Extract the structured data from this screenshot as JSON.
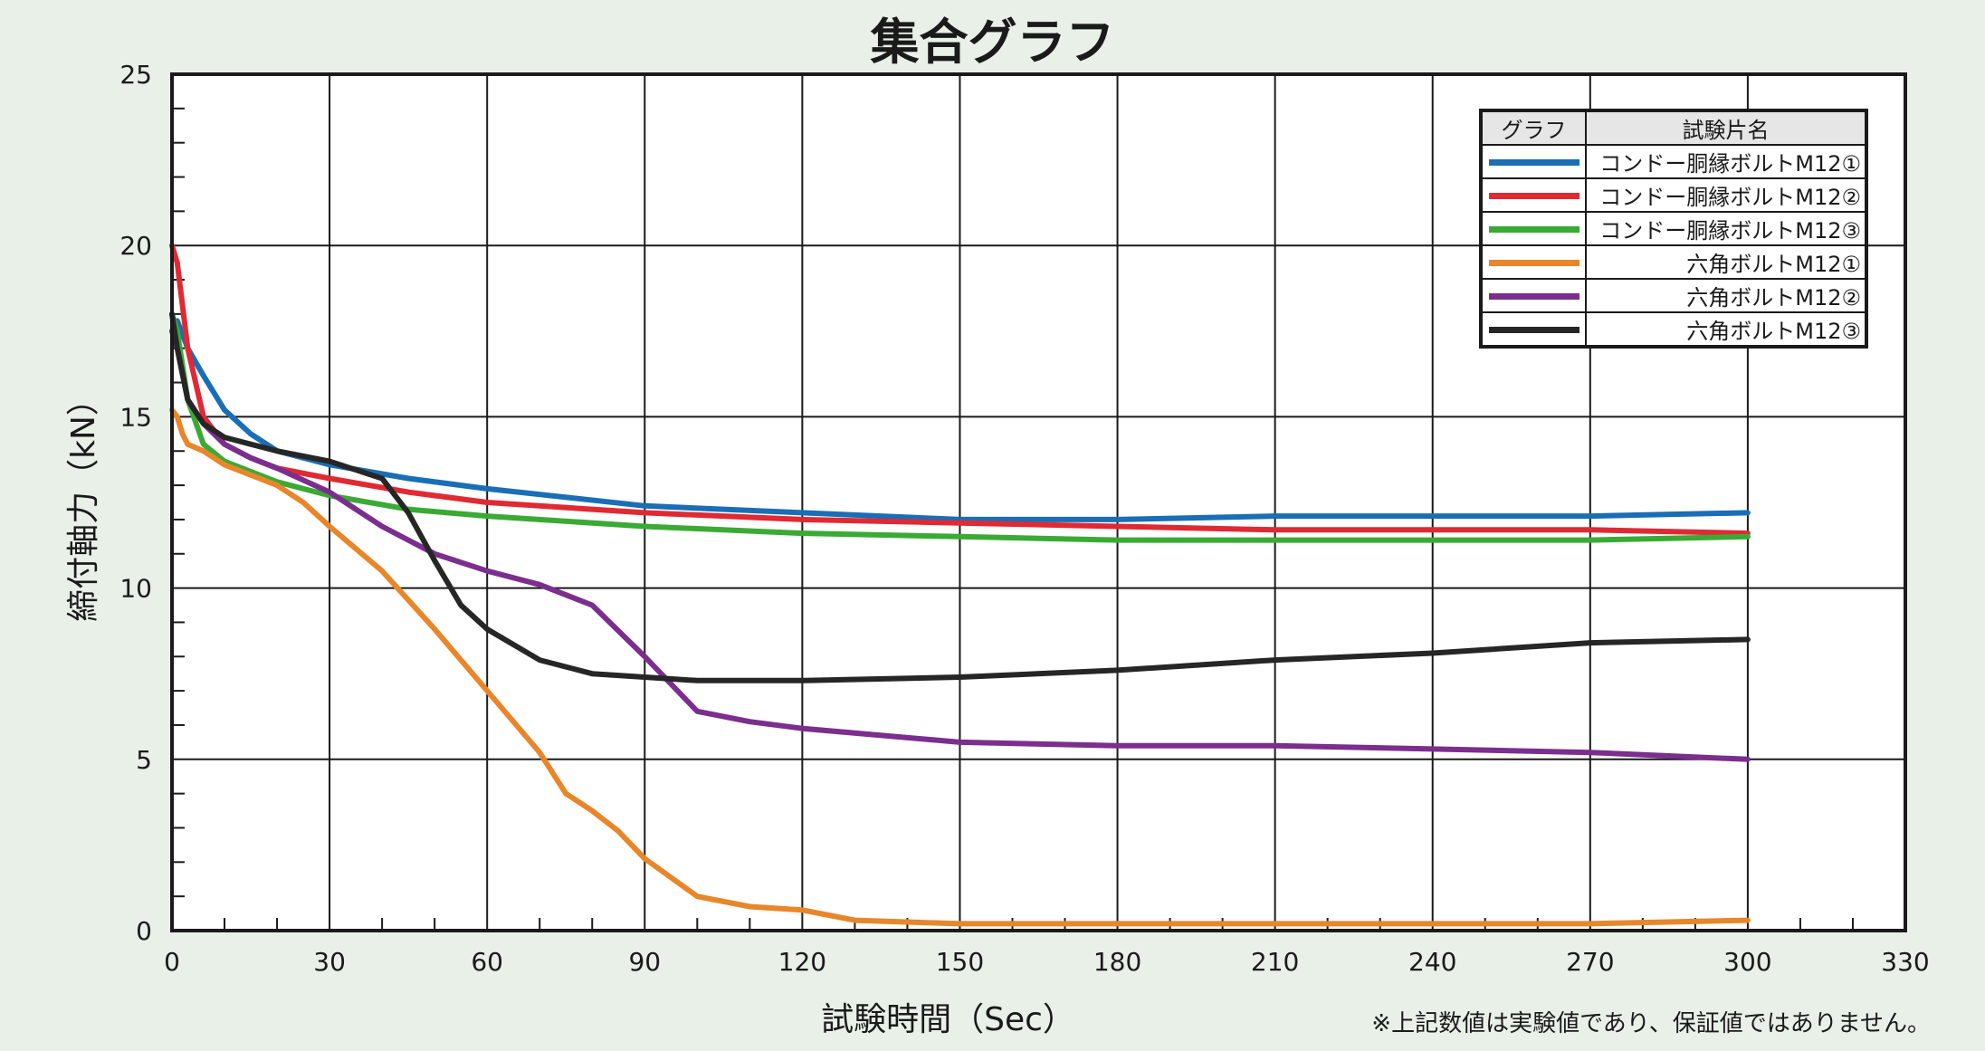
{
  "chart_data": {
    "type": "line",
    "title": "集合グラフ",
    "xlabel": "試験時間（Sec）",
    "ylabel": "締付軸力（kN）",
    "xlim": [
      0,
      330
    ],
    "ylim": [
      0,
      25
    ],
    "xticks": [
      0,
      30,
      60,
      90,
      120,
      150,
      180,
      210,
      240,
      270,
      300,
      330
    ],
    "yticks": [
      0,
      5,
      10,
      15,
      20,
      25
    ],
    "grid": true,
    "legend_position": "top-right",
    "legend_header": {
      "swatch": "グラフ",
      "name": "試験片名"
    },
    "note": "※上記数値は実験値であり、保証値ではありません。",
    "series": [
      {
        "name": "コンドー胴縁ボルトM12①",
        "color": "#1a6eb5",
        "x": [
          0,
          1,
          3,
          6,
          10,
          15,
          20,
          30,
          45,
          60,
          90,
          120,
          150,
          180,
          210,
          240,
          270,
          300
        ],
        "y": [
          17.5,
          17.8,
          17.0,
          16.2,
          15.2,
          14.5,
          14.0,
          13.6,
          13.2,
          12.9,
          12.4,
          12.2,
          12.0,
          12.0,
          12.1,
          12.1,
          12.1,
          12.2
        ]
      },
      {
        "name": "コンドー胴縁ボルトM12②",
        "color": "#e02a33",
        "x": [
          0,
          1,
          3,
          6,
          10,
          15,
          20,
          30,
          45,
          60,
          90,
          120,
          150,
          180,
          210,
          240,
          270,
          300
        ],
        "y": [
          20.0,
          19.5,
          17.0,
          15.0,
          14.2,
          13.8,
          13.5,
          13.2,
          12.8,
          12.5,
          12.2,
          12.0,
          11.9,
          11.8,
          11.7,
          11.7,
          11.7,
          11.6
        ]
      },
      {
        "name": "コンドー胴縁ボルトM12③",
        "color": "#3aaa35",
        "x": [
          0,
          1,
          3,
          6,
          10,
          15,
          20,
          30,
          45,
          60,
          90,
          120,
          150,
          180,
          210,
          240,
          270,
          300
        ],
        "y": [
          18.0,
          17.5,
          15.5,
          14.2,
          13.7,
          13.4,
          13.1,
          12.7,
          12.3,
          12.1,
          11.8,
          11.6,
          11.5,
          11.4,
          11.4,
          11.4,
          11.4,
          11.5
        ]
      },
      {
        "name": "六角ボルトM12①",
        "color": "#e8862a",
        "x": [
          0,
          1,
          2,
          3,
          6,
          10,
          15,
          20,
          25,
          30,
          40,
          50,
          60,
          70,
          75,
          80,
          85,
          90,
          100,
          110,
          120,
          130,
          150,
          180,
          210,
          240,
          270,
          300
        ],
        "y": [
          15.2,
          15.0,
          14.5,
          14.2,
          14.0,
          13.6,
          13.3,
          13.0,
          12.5,
          11.8,
          10.5,
          8.8,
          7.0,
          5.2,
          4.0,
          3.5,
          2.9,
          2.1,
          1.0,
          0.7,
          0.6,
          0.3,
          0.2,
          0.2,
          0.2,
          0.2,
          0.2,
          0.3
        ]
      },
      {
        "name": "六角ボルトM12②",
        "color": "#7b2e8e",
        "x": [
          0,
          1,
          3,
          6,
          10,
          15,
          20,
          30,
          40,
          50,
          60,
          70,
          80,
          90,
          100,
          110,
          120,
          150,
          180,
          210,
          240,
          270,
          300
        ],
        "y": [
          17.5,
          17.0,
          15.5,
          14.8,
          14.2,
          13.8,
          13.5,
          12.8,
          11.8,
          11.0,
          10.5,
          10.1,
          9.5,
          8.0,
          6.4,
          6.1,
          5.9,
          5.5,
          5.4,
          5.4,
          5.3,
          5.2,
          5.0
        ]
      },
      {
        "name": "六角ボルトM12③",
        "color": "#262626",
        "x": [
          0,
          1,
          3,
          6,
          10,
          15,
          20,
          30,
          40,
          45,
          50,
          55,
          60,
          70,
          80,
          90,
          100,
          120,
          150,
          180,
          210,
          240,
          270,
          300
        ],
        "y": [
          18.0,
          17.0,
          15.5,
          14.8,
          14.4,
          14.2,
          14.0,
          13.7,
          13.2,
          12.2,
          10.8,
          9.5,
          8.8,
          7.9,
          7.5,
          7.4,
          7.3,
          7.3,
          7.4,
          7.6,
          7.9,
          8.1,
          8.4,
          8.5
        ]
      }
    ]
  }
}
